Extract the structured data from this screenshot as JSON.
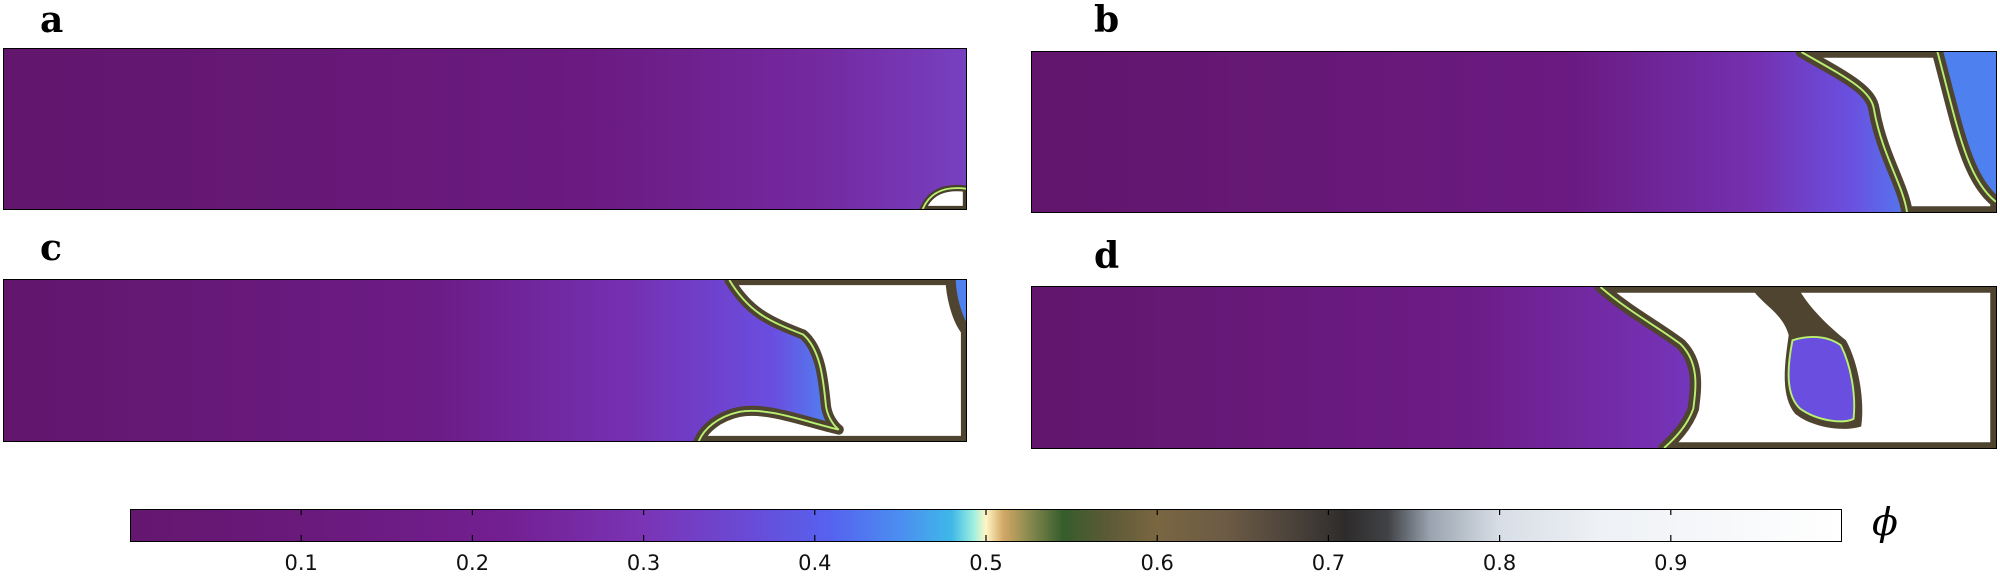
{
  "panels": [
    {
      "label": "a"
    },
    {
      "label": "b"
    },
    {
      "label": "c"
    },
    {
      "label": "d"
    }
  ],
  "colorbar": {
    "label": "ϕ",
    "lim": [
      0,
      1
    ],
    "ticks": [
      0.1,
      0.2,
      0.3,
      0.4,
      0.5,
      0.6,
      0.7,
      0.8,
      0.9
    ]
  }
}
